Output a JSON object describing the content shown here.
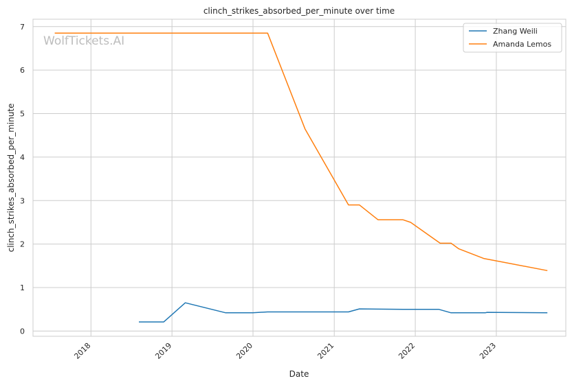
{
  "chart_data": {
    "type": "line",
    "title": "clinch_strikes_absorbed_per_minute over time",
    "xlabel": "Date",
    "ylabel": "clinch_strikes_absorbed_per_minute",
    "watermark": "WolfTickets.AI",
    "x_ticks": [
      "2018",
      "2019",
      "2020",
      "2021",
      "2022",
      "2023"
    ],
    "y_ticks": [
      0,
      1,
      2,
      3,
      4,
      5,
      6,
      7
    ],
    "xlim": [
      "2017-04-15",
      "2023-11-10"
    ],
    "ylim": [
      -0.12,
      7.17
    ],
    "grid": true,
    "legend_position": "top-right",
    "series": [
      {
        "name": "Zhang Weili",
        "color": "#1f77b4",
        "points": [
          [
            "2018-08-05",
            0.21
          ],
          [
            "2018-11-25",
            0.21
          ],
          [
            "2019-03-02",
            0.65
          ],
          [
            "2019-08-31",
            0.42
          ],
          [
            "2019-12-30",
            0.42
          ],
          [
            "2020-03-07",
            0.44
          ],
          [
            "2021-03-06",
            0.44
          ],
          [
            "2021-04-24",
            0.51
          ],
          [
            "2021-11-06",
            0.5
          ],
          [
            "2022-04-16",
            0.5
          ],
          [
            "2022-06-11",
            0.42
          ],
          [
            "2022-11-12",
            0.42
          ],
          [
            "2022-11-20",
            0.43
          ],
          [
            "2023-08-19",
            0.42
          ]
        ]
      },
      {
        "name": "Amanda Lemos",
        "color": "#ff7f0e",
        "points": [
          [
            "2017-07-22",
            6.85
          ],
          [
            "2020-03-07",
            6.85
          ],
          [
            "2020-08-22",
            4.65
          ],
          [
            "2021-03-06",
            2.9
          ],
          [
            "2021-04-24",
            2.9
          ],
          [
            "2021-07-17",
            2.56
          ],
          [
            "2021-11-06",
            2.56
          ],
          [
            "2021-12-11",
            2.5
          ],
          [
            "2022-04-23",
            2.02
          ],
          [
            "2022-06-11",
            2.02
          ],
          [
            "2022-07-16",
            1.89
          ],
          [
            "2022-11-05",
            1.67
          ],
          [
            "2023-08-19",
            1.39
          ]
        ]
      }
    ]
  }
}
